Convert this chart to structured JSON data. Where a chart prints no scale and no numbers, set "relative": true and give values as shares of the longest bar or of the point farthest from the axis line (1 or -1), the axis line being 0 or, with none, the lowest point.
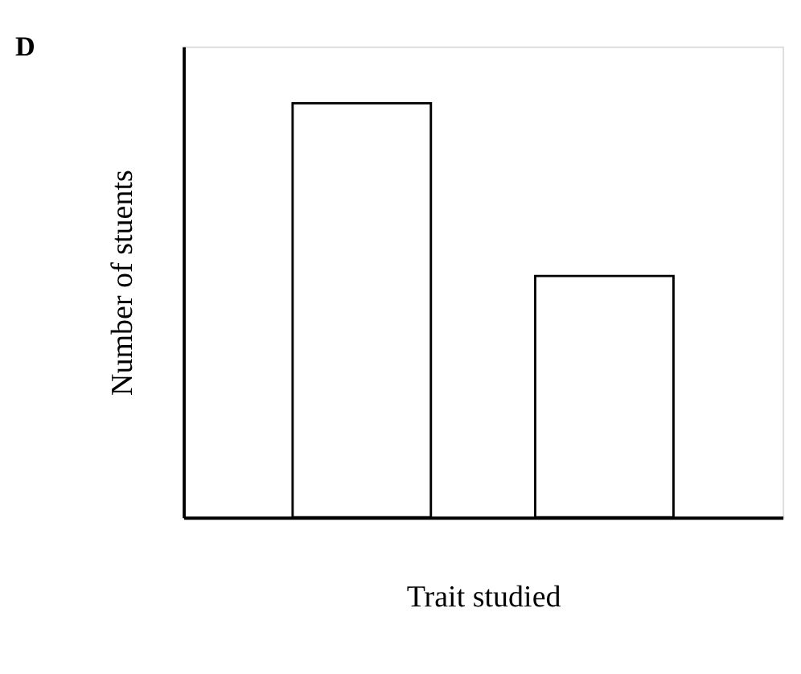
{
  "chart_data": {
    "type": "bar",
    "title": "D",
    "xlabel": "Trait studied",
    "ylabel": "Number of stuents",
    "categories": [
      null,
      null
    ],
    "series": [
      {
        "color": "#ffffff",
        "values": [
          1,
          0.583
        ]
      }
    ],
    "relative": true,
    "grid": false,
    "legend": false
  }
}
